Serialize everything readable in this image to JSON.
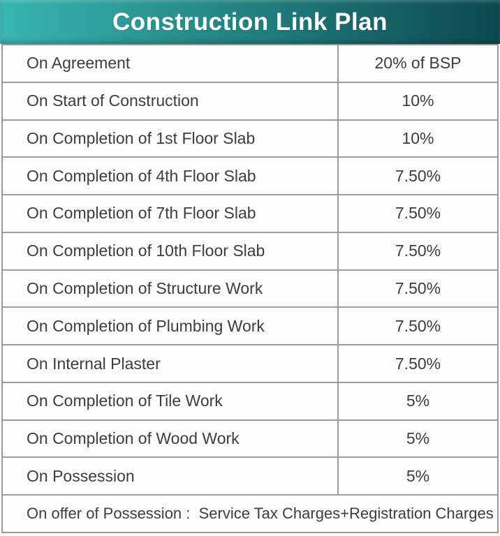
{
  "header": {
    "title": "Construction Link Plan",
    "gradient_left": "#38b6ae",
    "gradient_right": "#0c4850",
    "text_color": "#ffffff"
  },
  "table": {
    "border_color": "#9c9c9c",
    "text_color": "#3d3d3d",
    "rows": [
      {
        "label": "On Agreement",
        "value": "20% of BSP"
      },
      {
        "label": "On Start of Construction",
        "value": "10%"
      },
      {
        "label": "On Completion of 1st Floor Slab",
        "value": "10%"
      },
      {
        "label": "On Completion of 4th Floor Slab",
        "value": "7.50%"
      },
      {
        "label": "On Completion of 7th Floor Slab",
        "value": "7.50%"
      },
      {
        "label": "On Completion of 10th Floor Slab",
        "value": "7.50%"
      },
      {
        "label": "On Completion of Structure Work",
        "value": "7.50%"
      },
      {
        "label": "On Completion of Plumbing Work",
        "value": "7.50%"
      },
      {
        "label": "On Internal Plaster",
        "value": "7.50%"
      },
      {
        "label": "On Completion of Tile Work",
        "value": "5%"
      },
      {
        "label": "On Completion of Wood Work",
        "value": "5%"
      },
      {
        "label": "On Possession",
        "value": "5%"
      }
    ],
    "footer": "On offer of Possession :  Service Tax Charges+Registration Charges"
  }
}
